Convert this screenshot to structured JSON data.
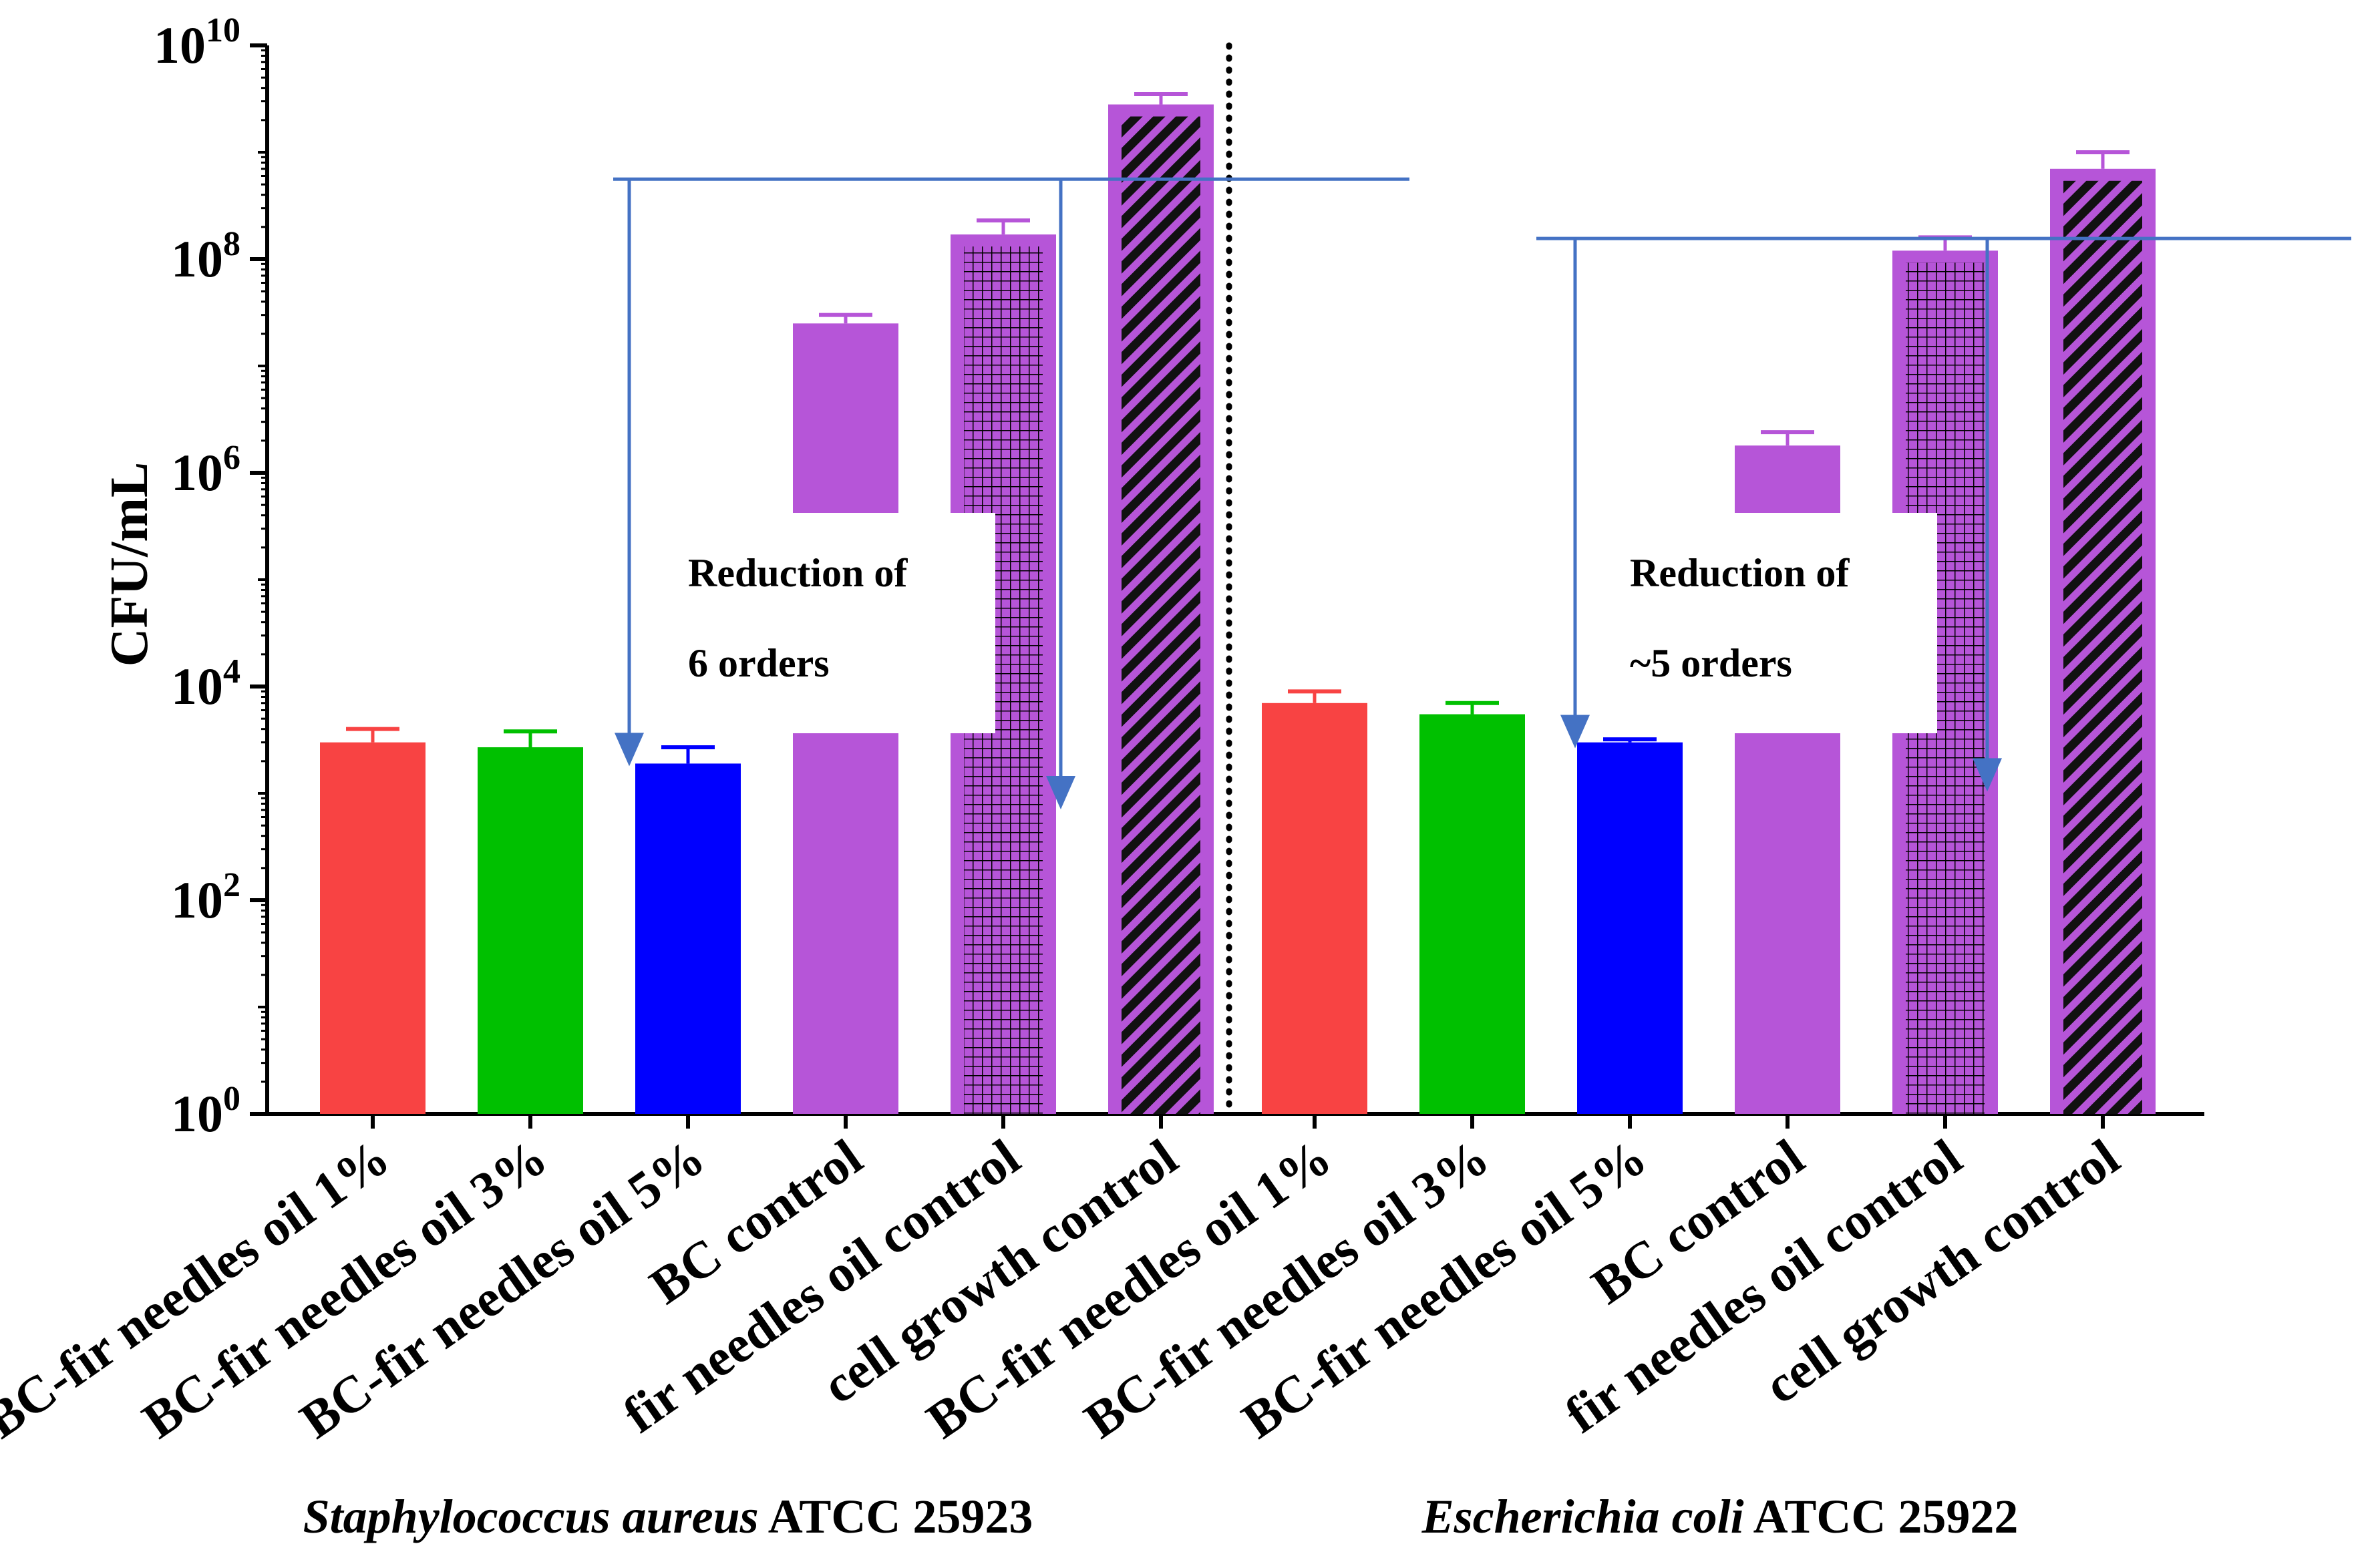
{
  "chart_data": {
    "type": "bar",
    "ylabel": "CFU/mL",
    "yscale": "log10",
    "ylim": [
      1,
      10000000000
    ],
    "ytick_labels": [
      {
        "base": "10",
        "exp": "0"
      },
      {
        "base": "10",
        "exp": "2"
      },
      {
        "base": "10",
        "exp": "4"
      },
      {
        "base": "10",
        "exp": "6"
      },
      {
        "base": "10",
        "exp": "8"
      },
      {
        "base": "10",
        "exp": "10"
      }
    ],
    "grid": false,
    "groups": [
      {
        "name_italic": "Staphylococcus aureus",
        "name_rest": " ATCC 25923",
        "bars": [
          {
            "category": "BC-fir needles oil 1%",
            "value": 3000,
            "err": 4000,
            "color": "#f84343",
            "pattern": "solid"
          },
          {
            "category": "BC-fir needles oil 3%",
            "value": 2700,
            "err": 3800,
            "color": "#00c000",
            "pattern": "solid"
          },
          {
            "category": "BC-fir needles oil 5%",
            "value": 1900,
            "err": 2700,
            "color": "#0000ff",
            "pattern": "solid"
          },
          {
            "category": "BC control",
            "value": 25000000,
            "err": 30000000,
            "color": "#b655d8",
            "pattern": "solid"
          },
          {
            "category": "fir needles oil control",
            "value": 170000000,
            "err": 230000000,
            "color": "#b655d8",
            "pattern": "grid"
          },
          {
            "category": "cell growth control",
            "value": 2800000000,
            "err": 3500000000,
            "color": "#b655d8",
            "pattern": "diagonal"
          }
        ]
      },
      {
        "name_italic": "Escherichia coli",
        "name_rest": " ATCC 25922",
        "bars": [
          {
            "category": "BC-fir needles oil 1%",
            "value": 7000,
            "err": 9000,
            "color": "#f84343",
            "pattern": "solid"
          },
          {
            "category": "BC-fir needles oil 3%",
            "value": 5500,
            "err": 7000,
            "color": "#00c000",
            "pattern": "solid"
          },
          {
            "category": "BC-fir needles oil 5%",
            "value": 3000,
            "err": 3200,
            "color": "#0000ff",
            "pattern": "solid"
          },
          {
            "category": "BC control",
            "value": 1800000,
            "err": 2400000,
            "color": "#b655d8",
            "pattern": "solid"
          },
          {
            "category": "fir needles oil control",
            "value": 120000000,
            "err": 160000000,
            "color": "#b655d8",
            "pattern": "grid"
          },
          {
            "category": "cell growth control",
            "value": 700000000,
            "err": 1000000000,
            "color": "#b655d8",
            "pattern": "diagonal"
          }
        ]
      }
    ],
    "annotations": [
      {
        "line1": "Reduction of",
        "line2": "6 orders"
      },
      {
        "line1": "Reduction of",
        "line2": "~5 orders"
      }
    ],
    "line_color": "#4472c4"
  }
}
